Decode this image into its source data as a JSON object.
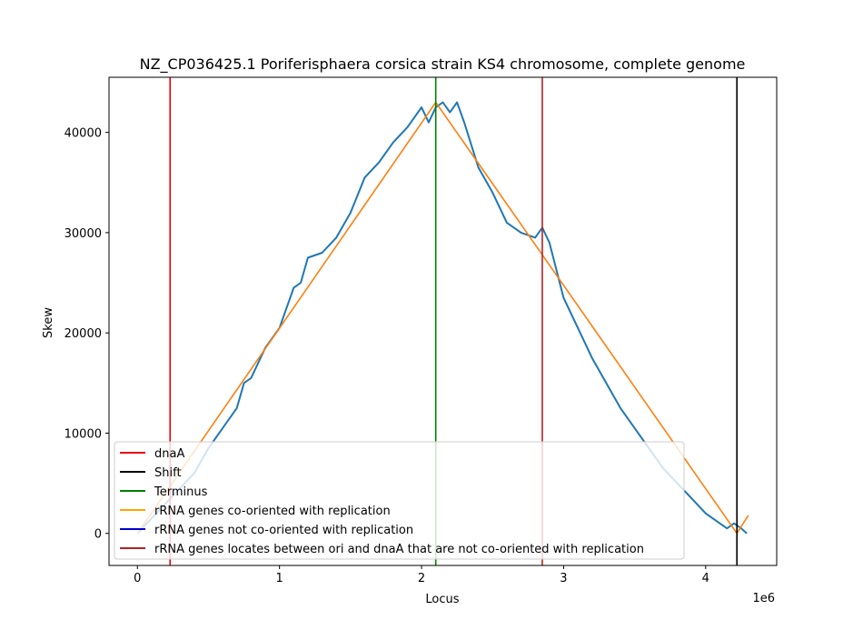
{
  "chart_data": {
    "type": "line",
    "title": "NZ_CP036425.1 Poriferisphaera corsica strain KS4 chromosome, complete genome",
    "xlabel": "Locus",
    "ylabel": "Skew",
    "x_offset_label": "1e6",
    "xlim": [
      -200000,
      4500000
    ],
    "ylim": [
      -3200,
      45500
    ],
    "x_ticks": [
      0,
      1000000,
      2000000,
      3000000,
      4000000
    ],
    "x_tick_labels": [
      "0",
      "1",
      "2",
      "3",
      "4"
    ],
    "y_ticks": [
      0,
      10000,
      20000,
      30000,
      40000
    ],
    "y_tick_labels": [
      "0",
      "10000",
      "20000",
      "30000",
      "40000"
    ],
    "grid": false,
    "legend_position": "lower-left",
    "series": [
      {
        "color": "#1f77b4",
        "x": [
          0,
          100000,
          200000,
          300000,
          400000,
          500000,
          600000,
          700000,
          750000,
          800000,
          900000,
          1000000,
          1100000,
          1150000,
          1200000,
          1300000,
          1400000,
          1500000,
          1600000,
          1700000,
          1800000,
          1900000,
          2000000,
          2050000,
          2100000,
          2150000,
          2200000,
          2250000,
          2300000,
          2400000,
          2500000,
          2600000,
          2700000,
          2800000,
          2850000,
          2900000,
          3000000,
          3100000,
          3200000,
          3300000,
          3400000,
          3500000,
          3600000,
          3700000,
          3800000,
          3900000,
          4000000,
          4100000,
          4150000,
          4200000,
          4250000,
          4290000
        ],
        "y": [
          0,
          1500,
          3000,
          4500,
          6000,
          8500,
          10500,
          12500,
          15000,
          15500,
          18500,
          20500,
          24500,
          25000,
          27500,
          28000,
          29500,
          32000,
          35500,
          37000,
          39000,
          40500,
          42500,
          41000,
          42500,
          43000,
          42000,
          43000,
          41000,
          36500,
          34000,
          31000,
          30000,
          29500,
          30500,
          29000,
          23500,
          20500,
          17500,
          15000,
          12500,
          10500,
          8500,
          6500,
          5000,
          3500,
          2000,
          1000,
          500,
          1000,
          500,
          0
        ]
      },
      {
        "color": "#ff7f0e",
        "x": [
          0,
          2100000,
          4220000,
          4300000
        ],
        "y": [
          0,
          43000,
          0,
          1800
        ]
      }
    ],
    "vertical_lines": [
      {
        "name": "dnaA",
        "x": 230000,
        "color": "#e8000b"
      },
      {
        "name": "Shift",
        "x": 4220000,
        "color": "#000000"
      },
      {
        "name": "Terminus",
        "x": 2100000,
        "color": "#008000"
      },
      {
        "name": "rRNA genes locates between ori and dnaA that are not co-oriented with replication",
        "x": 2850000,
        "color": "#b22222"
      }
    ],
    "legend": [
      {
        "label": "dnaA",
        "color": "#e8000b"
      },
      {
        "label": "Shift",
        "color": "#000000"
      },
      {
        "label": "Terminus",
        "color": "#008000"
      },
      {
        "label": "rRNA genes co-oriented with replication",
        "color": "#ffa500"
      },
      {
        "label": "rRNA genes not co-oriented with replication",
        "color": "#0000cd"
      },
      {
        "label": "rRNA genes locates between ori and dnaA that are not co-oriented with replication",
        "color": "#b22222"
      }
    ]
  }
}
